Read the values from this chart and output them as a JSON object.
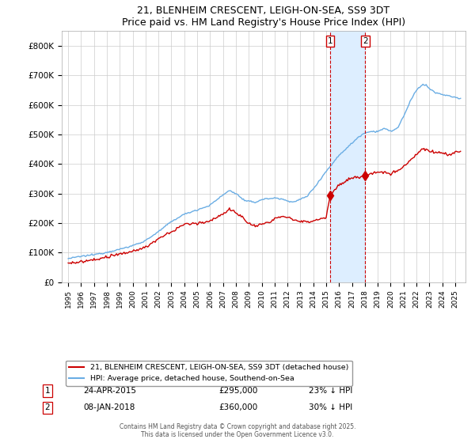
{
  "title": "21, BLENHEIM CRESCENT, LEIGH-ON-SEA, SS9 3DT",
  "subtitle": "Price paid vs. HM Land Registry's House Price Index (HPI)",
  "legend_line1": "21, BLENHEIM CRESCENT, LEIGH-ON-SEA, SS9 3DT (detached house)",
  "legend_line2": "HPI: Average price, detached house, Southend-on-Sea",
  "annotation1_date": "24-APR-2015",
  "annotation1_price": "£295,000",
  "annotation1_hpi": "23% ↓ HPI",
  "annotation1_year": 2015.3,
  "annotation1_value": 295000,
  "annotation2_date": "08-JAN-2018",
  "annotation2_price": "£360,000",
  "annotation2_hpi": "30% ↓ HPI",
  "annotation2_year": 2018.03,
  "annotation2_value": 360000,
  "footer": "Contains HM Land Registry data © Crown copyright and database right 2025.\nThis data is licensed under the Open Government Licence v3.0.",
  "hpi_color": "#6aade4",
  "price_color": "#cc0000",
  "shaded_color": "#ddeeff",
  "annotation_vline_color": "#cc0000",
  "ylim_min": 0,
  "ylim_max": 850000,
  "xlim_min": 1994.5,
  "xlim_max": 2025.8,
  "background_color": "#ffffff",
  "grid_color": "#cccccc"
}
